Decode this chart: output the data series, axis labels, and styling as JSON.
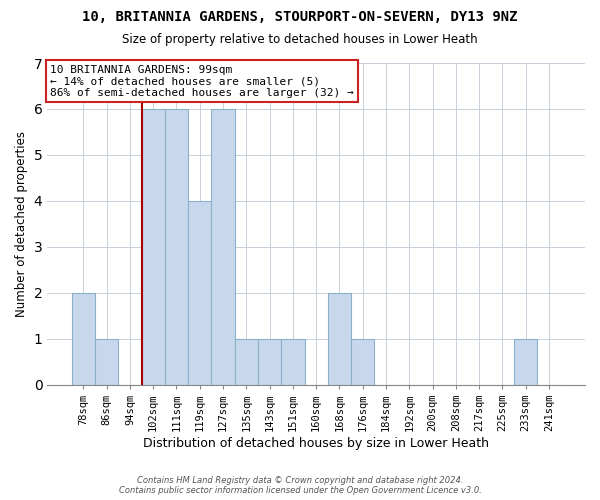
{
  "title": "10, BRITANNIA GARDENS, STOURPORT-ON-SEVERN, DY13 9NZ",
  "subtitle": "Size of property relative to detached houses in Lower Heath",
  "xlabel": "Distribution of detached houses by size in Lower Heath",
  "ylabel": "Number of detached properties",
  "bar_labels": [
    "78sqm",
    "86sqm",
    "94sqm",
    "102sqm",
    "111sqm",
    "119sqm",
    "127sqm",
    "135sqm",
    "143sqm",
    "151sqm",
    "160sqm",
    "168sqm",
    "176sqm",
    "184sqm",
    "192sqm",
    "200sqm",
    "208sqm",
    "217sqm",
    "225sqm",
    "233sqm",
    "241sqm"
  ],
  "bar_values": [
    2,
    1,
    0,
    6,
    6,
    4,
    6,
    1,
    1,
    1,
    0,
    2,
    1,
    0,
    0,
    0,
    0,
    0,
    0,
    1,
    0
  ],
  "bar_color": "#c8d8ec",
  "bar_edge_color": "#8ab0cc",
  "property_line_color": "#aa0000",
  "annotation_line1": "10 BRITANNIA GARDENS: 99sqm",
  "annotation_line2": "← 14% of detached houses are smaller (5)",
  "annotation_line3": "86% of semi-detached houses are larger (32) →",
  "annotation_box_color": "#ffffff",
  "annotation_box_edge_color": "#cc2222",
  "ylim": [
    0,
    7
  ],
  "yticks": [
    0,
    1,
    2,
    3,
    4,
    5,
    6,
    7
  ],
  "background_color": "#ffffff",
  "grid_color": "#c8d0dc",
  "footer_line1": "Contains HM Land Registry data © Crown copyright and database right 2024.",
  "footer_line2": "Contains public sector information licensed under the Open Government Licence v3.0."
}
